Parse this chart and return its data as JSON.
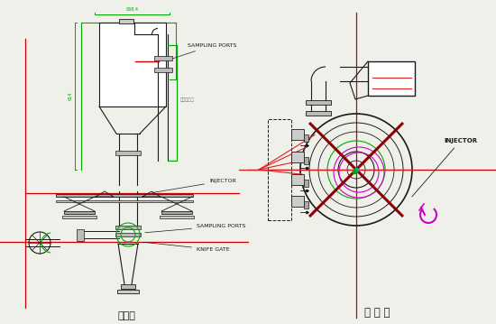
{
  "bg_color": "#f0f0eb",
  "line_color": "#1a1a1a",
  "green_color": "#00aa00",
  "red_color": "#cc0000",
  "red_line_color": "#dd2222",
  "magenta_color": "#cc00cc",
  "cyan_color": "#00aaaa",
  "dark_red": "#8b0000",
  "title_front": "정면도",
  "title_plan": "평 면 도",
  "label_sampling_ports_top": "SAMPLING PORTS",
  "label_pipe": "파이프라인",
  "label_injector_front": "INJECTOR",
  "label_sampling_ports_bot": "SAMPLING PORTS",
  "label_knife_gate": "KNIFE GATE",
  "label_injector_plan": "INJECTOR",
  "figsize": [
    5.5,
    3.59
  ],
  "dpi": 100
}
